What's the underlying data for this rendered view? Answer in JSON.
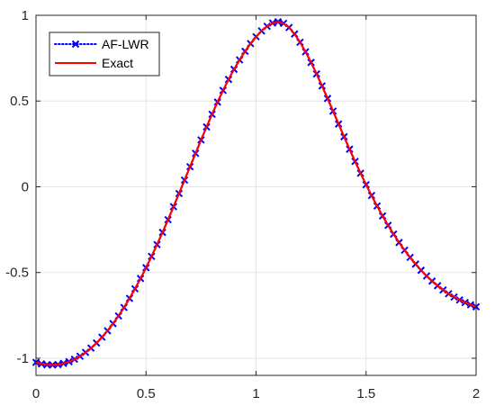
{
  "chart_data": {
    "type": "line",
    "title": "",
    "xlabel": "",
    "ylabel": "",
    "xlim": [
      0,
      2
    ],
    "ylim": [
      -1.1,
      1.0
    ],
    "grid": true,
    "legend_placement": "top-left",
    "x_ticks": [
      "0",
      "0.5",
      "1",
      "1.5",
      "2"
    ],
    "y_ticks": [
      "-1",
      "-0.5",
      "0",
      "0.5",
      "1"
    ],
    "series": [
      {
        "name": "AF-LWR",
        "color": "#0000ff",
        "line_style": "dotted",
        "marker": "x",
        "x": [
          0,
          0.025,
          0.05,
          0.075,
          0.1,
          0.125,
          0.15,
          0.175,
          0.2,
          0.225,
          0.25,
          0.275,
          0.3,
          0.325,
          0.35,
          0.375,
          0.4,
          0.425,
          0.45,
          0.475,
          0.5,
          0.525,
          0.55,
          0.575,
          0.6,
          0.625,
          0.65,
          0.675,
          0.7,
          0.725,
          0.75,
          0.775,
          0.8,
          0.825,
          0.85,
          0.875,
          0.9,
          0.925,
          0.95,
          0.975,
          1,
          1.025,
          1.05,
          1.075,
          1.1,
          1.125,
          1.15,
          1.175,
          1.2,
          1.225,
          1.25,
          1.275,
          1.3,
          1.325,
          1.35,
          1.375,
          1.4,
          1.425,
          1.45,
          1.475,
          1.5,
          1.525,
          1.55,
          1.575,
          1.6,
          1.625,
          1.65,
          1.675,
          1.7,
          1.725,
          1.75,
          1.775,
          1.8,
          1.825,
          1.85,
          1.875,
          1.9,
          1.925,
          1.95,
          1.975,
          2
        ],
        "y": [
          -1.024,
          -1.033,
          -1.038,
          -1.039,
          -1.037,
          -1.03,
          -1.02,
          -1.006,
          -0.988,
          -0.966,
          -0.941,
          -0.911,
          -0.877,
          -0.84,
          -0.798,
          -0.753,
          -0.704,
          -0.651,
          -0.595,
          -0.535,
          -0.472,
          -0.406,
          -0.337,
          -0.266,
          -0.192,
          -0.116,
          -0.039,
          0.039,
          0.117,
          0.195,
          0.273,
          0.349,
          0.423,
          0.494,
          0.562,
          0.626,
          0.685,
          0.74,
          0.79,
          0.835,
          0.875,
          0.909,
          0.936,
          0.955,
          0.962,
          0.953,
          0.929,
          0.891,
          0.843,
          0.787,
          0.725,
          0.658,
          0.588,
          0.515,
          0.441,
          0.366,
          0.292,
          0.219,
          0.148,
          0.079,
          0.012,
          -0.051,
          -0.112,
          -0.17,
          -0.225,
          -0.276,
          -0.325,
          -0.37,
          -0.412,
          -0.451,
          -0.487,
          -0.52,
          -0.55,
          -0.577,
          -0.602,
          -0.624,
          -0.643,
          -0.66,
          -0.675,
          -0.688,
          -0.7
        ]
      },
      {
        "name": "Exact",
        "color": "#ff0000",
        "line_style": "solid",
        "marker": "none",
        "x": [
          0,
          0.025,
          0.05,
          0.075,
          0.1,
          0.125,
          0.15,
          0.175,
          0.2,
          0.225,
          0.25,
          0.275,
          0.3,
          0.325,
          0.35,
          0.375,
          0.4,
          0.425,
          0.45,
          0.475,
          0.5,
          0.525,
          0.55,
          0.575,
          0.6,
          0.625,
          0.65,
          0.675,
          0.7,
          0.725,
          0.75,
          0.775,
          0.8,
          0.825,
          0.85,
          0.875,
          0.9,
          0.925,
          0.95,
          0.975,
          1,
          1.025,
          1.05,
          1.075,
          1.1,
          1.125,
          1.15,
          1.175,
          1.2,
          1.225,
          1.25,
          1.275,
          1.3,
          1.325,
          1.35,
          1.375,
          1.4,
          1.425,
          1.45,
          1.475,
          1.5,
          1.525,
          1.55,
          1.575,
          1.6,
          1.625,
          1.65,
          1.675,
          1.7,
          1.725,
          1.75,
          1.775,
          1.8,
          1.825,
          1.85,
          1.875,
          1.9,
          1.925,
          1.95,
          1.975,
          2
        ],
        "y": [
          -1.024,
          -1.033,
          -1.038,
          -1.039,
          -1.037,
          -1.03,
          -1.02,
          -1.006,
          -0.988,
          -0.966,
          -0.941,
          -0.911,
          -0.877,
          -0.84,
          -0.798,
          -0.753,
          -0.704,
          -0.651,
          -0.595,
          -0.535,
          -0.472,
          -0.406,
          -0.337,
          -0.266,
          -0.192,
          -0.116,
          -0.039,
          0.039,
          0.117,
          0.195,
          0.273,
          0.349,
          0.423,
          0.494,
          0.562,
          0.626,
          0.685,
          0.74,
          0.79,
          0.835,
          0.875,
          0.909,
          0.936,
          0.955,
          0.962,
          0.953,
          0.929,
          0.891,
          0.843,
          0.787,
          0.725,
          0.658,
          0.588,
          0.515,
          0.441,
          0.366,
          0.292,
          0.219,
          0.148,
          0.079,
          0.012,
          -0.051,
          -0.112,
          -0.17,
          -0.225,
          -0.276,
          -0.325,
          -0.37,
          -0.412,
          -0.451,
          -0.487,
          -0.52,
          -0.55,
          -0.577,
          -0.602,
          -0.624,
          -0.643,
          -0.66,
          -0.675,
          -0.688,
          -0.7
        ]
      }
    ]
  }
}
